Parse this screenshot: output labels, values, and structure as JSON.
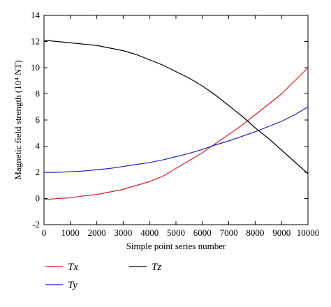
{
  "chart_data": {
    "type": "line",
    "xlabel": "Simple point series number",
    "ylabel": "Magnetic field strength (10⁴ NT)",
    "x": [
      0,
      500,
      1000,
      1500,
      2000,
      2500,
      3000,
      3500,
      4000,
      4500,
      5000,
      5500,
      6000,
      6500,
      7000,
      7500,
      8000,
      8500,
      9000,
      9500,
      10000
    ],
    "series": [
      {
        "name": "Tx",
        "color": "#d62020",
        "values": [
          -0.1,
          0.0,
          0.05,
          0.2,
          0.3,
          0.5,
          0.7,
          1.0,
          1.3,
          1.7,
          2.3,
          2.9,
          3.5,
          4.2,
          4.9,
          5.6,
          6.4,
          7.2,
          8.0,
          9.0,
          10.0
        ]
      },
      {
        "name": "Ty",
        "color": "#2020c0",
        "values": [
          2.0,
          2.0,
          2.05,
          2.1,
          2.2,
          2.3,
          2.45,
          2.6,
          2.75,
          2.95,
          3.2,
          3.45,
          3.75,
          4.1,
          4.4,
          4.75,
          5.1,
          5.5,
          5.9,
          6.4,
          7.0
        ]
      },
      {
        "name": "Tz",
        "color": "#000000",
        "values": [
          12.1,
          12.0,
          11.9,
          11.8,
          11.7,
          11.5,
          11.3,
          11.0,
          10.6,
          10.2,
          9.7,
          9.2,
          8.6,
          7.9,
          7.1,
          6.3,
          5.4,
          4.6,
          3.7,
          2.8,
          1.9
        ]
      }
    ],
    "xlim": [
      0,
      10000
    ],
    "xticks": [
      0,
      1000,
      2000,
      3000,
      4000,
      5000,
      6000,
      7000,
      8000,
      9000,
      10000
    ],
    "ylim": [
      -2,
      14
    ],
    "yticks": [
      -2,
      0,
      2,
      4,
      6,
      8,
      10,
      12,
      14
    ]
  }
}
